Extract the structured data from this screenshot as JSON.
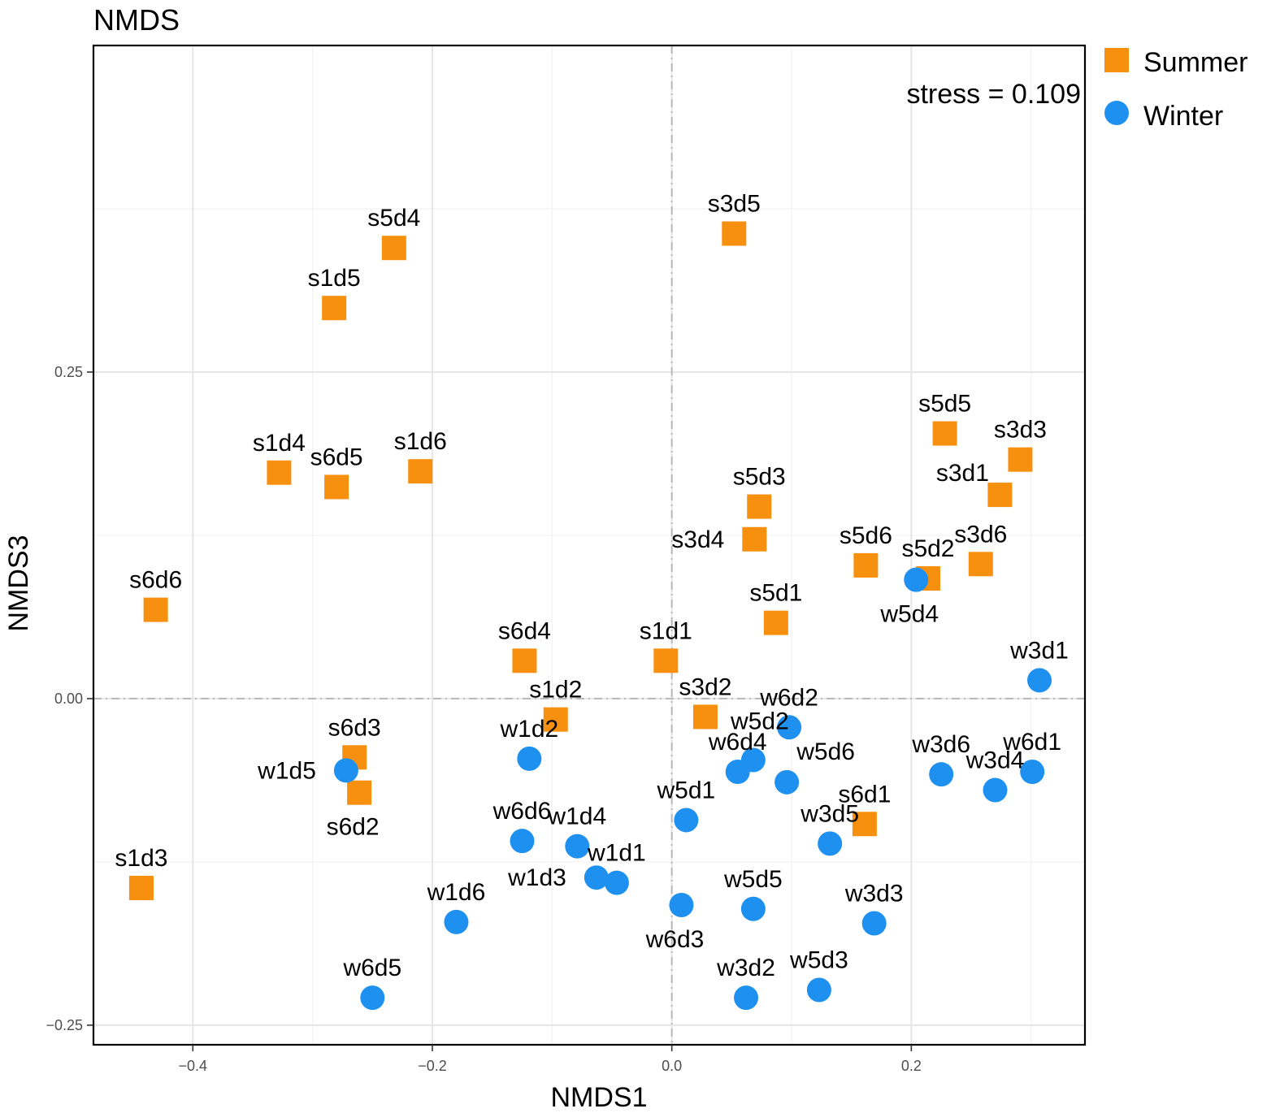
{
  "chart_data": {
    "type": "scatter",
    "title": "NMDS",
    "xlabel": "NMDS1",
    "ylabel": "NMDS3",
    "xlim": [
      -0.483,
      0.345
    ],
    "ylim": [
      -0.265,
      0.5
    ],
    "xticks": [
      -0.4,
      -0.2,
      0.0,
      0.2
    ],
    "xtick_labels": [
      "−0.4",
      "−0.2",
      "0.0",
      "0.2"
    ],
    "yticks": [
      -0.25,
      0.0,
      0.25
    ],
    "ytick_labels": [
      "−0.25",
      "0.00",
      "0.25"
    ],
    "grid": true,
    "reference_lines": {
      "x": 0,
      "y": 0
    },
    "annotation": "stress = 0.109",
    "legend": [
      {
        "name": "Summer",
        "shape": "square",
        "color": "#F8900F"
      },
      {
        "name": "Winter",
        "shape": "circle",
        "color": "#1E90F0"
      }
    ],
    "series": [
      {
        "name": "Summer",
        "shape": "square",
        "color": "#F8900F",
        "points": [
          {
            "label": "s5d4",
            "x": -0.232,
            "y": 0.345,
            "pos": "above"
          },
          {
            "label": "s1d5",
            "x": -0.282,
            "y": 0.299,
            "pos": "above"
          },
          {
            "label": "s3d5",
            "x": 0.052,
            "y": 0.356,
            "pos": "above"
          },
          {
            "label": "s1d4",
            "x": -0.328,
            "y": 0.173,
            "pos": "above"
          },
          {
            "label": "s6d5",
            "x": -0.28,
            "y": 0.162,
            "pos": "above"
          },
          {
            "label": "s1d6",
            "x": -0.21,
            "y": 0.174,
            "pos": "above"
          },
          {
            "label": "s5d5",
            "x": 0.228,
            "y": 0.203,
            "pos": "above"
          },
          {
            "label": "s3d3",
            "x": 0.291,
            "y": 0.183,
            "pos": "above"
          },
          {
            "label": "s3d1",
            "x": 0.274,
            "y": 0.156,
            "pos": "aboveLeft"
          },
          {
            "label": "s5d3",
            "x": 0.073,
            "y": 0.147,
            "pos": "above"
          },
          {
            "label": "s3d4",
            "x": 0.069,
            "y": 0.122,
            "pos": "left"
          },
          {
            "label": "s5d6",
            "x": 0.162,
            "y": 0.102,
            "pos": "above"
          },
          {
            "label": "s5d2",
            "x": 0.214,
            "y": 0.092,
            "pos": "above"
          },
          {
            "label": "s3d6",
            "x": 0.258,
            "y": 0.103,
            "pos": "above"
          },
          {
            "label": "s6d6",
            "x": -0.431,
            "y": 0.068,
            "pos": "above"
          },
          {
            "label": "s5d1",
            "x": 0.087,
            "y": 0.058,
            "pos": "above"
          },
          {
            "label": "s6d4",
            "x": -0.123,
            "y": 0.029,
            "pos": "above"
          },
          {
            "label": "s1d1",
            "x": -0.005,
            "y": 0.029,
            "pos": "above"
          },
          {
            "label": "s1d2",
            "x": -0.097,
            "y": -0.016,
            "pos": "above"
          },
          {
            "label": "s3d2",
            "x": 0.028,
            "y": -0.014,
            "pos": "above"
          },
          {
            "label": "s6d3",
            "x": -0.265,
            "y": -0.045,
            "pos": "above"
          },
          {
            "label": "s6d2",
            "x": -0.261,
            "y": -0.072,
            "pos": "below"
          },
          {
            "label": "s6d1",
            "x": 0.161,
            "y": -0.096,
            "pos": "above"
          },
          {
            "label": "s1d3",
            "x": -0.443,
            "y": -0.145,
            "pos": "above"
          }
        ]
      },
      {
        "name": "Winter",
        "shape": "circle",
        "color": "#1E90F0",
        "points": [
          {
            "label": "w5d4",
            "x": 0.204,
            "y": 0.091,
            "pos": "below"
          },
          {
            "label": "w3d1",
            "x": 0.307,
            "y": 0.014,
            "pos": "above"
          },
          {
            "label": "w6d2",
            "x": 0.098,
            "y": -0.022,
            "pos": "above"
          },
          {
            "label": "w5d2",
            "x": 0.068,
            "y": -0.047,
            "pos": "aboveRaised"
          },
          {
            "label": "w6d4",
            "x": 0.055,
            "y": -0.056,
            "pos": "above"
          },
          {
            "label": "w5d6",
            "x": 0.096,
            "y": -0.064,
            "pos": "aboveRight"
          },
          {
            "label": "w1d2",
            "x": -0.119,
            "y": -0.046,
            "pos": "above"
          },
          {
            "label": "w1d5",
            "x": -0.272,
            "y": -0.055,
            "pos": "left"
          },
          {
            "label": "w3d6",
            "x": 0.225,
            "y": -0.058,
            "pos": "above"
          },
          {
            "label": "w6d1",
            "x": 0.301,
            "y": -0.056,
            "pos": "above"
          },
          {
            "label": "w3d4",
            "x": 0.27,
            "y": -0.07,
            "pos": "above"
          },
          {
            "label": "w5d1",
            "x": 0.012,
            "y": -0.093,
            "pos": "above"
          },
          {
            "label": "w3d5",
            "x": 0.132,
            "y": -0.111,
            "pos": "above"
          },
          {
            "label": "w6d6",
            "x": -0.125,
            "y": -0.109,
            "pos": "above"
          },
          {
            "label": "w1d4",
            "x": -0.079,
            "y": -0.113,
            "pos": "above"
          },
          {
            "label": "w1d1",
            "x": -0.046,
            "y": -0.141,
            "pos": "above"
          },
          {
            "label": "w1d3",
            "x": -0.063,
            "y": -0.137,
            "pos": "left"
          },
          {
            "label": "w6d3",
            "x": 0.008,
            "y": -0.158,
            "pos": "below"
          },
          {
            "label": "w5d5",
            "x": 0.068,
            "y": -0.161,
            "pos": "above"
          },
          {
            "label": "w3d3",
            "x": 0.169,
            "y": -0.172,
            "pos": "above"
          },
          {
            "label": "w1d6",
            "x": -0.18,
            "y": -0.171,
            "pos": "above"
          },
          {
            "label": "w5d3",
            "x": 0.123,
            "y": -0.223,
            "pos": "above"
          },
          {
            "label": "w3d2",
            "x": 0.062,
            "y": -0.229,
            "pos": "above"
          },
          {
            "label": "w6d5",
            "x": -0.25,
            "y": -0.229,
            "pos": "above"
          }
        ]
      }
    ]
  }
}
